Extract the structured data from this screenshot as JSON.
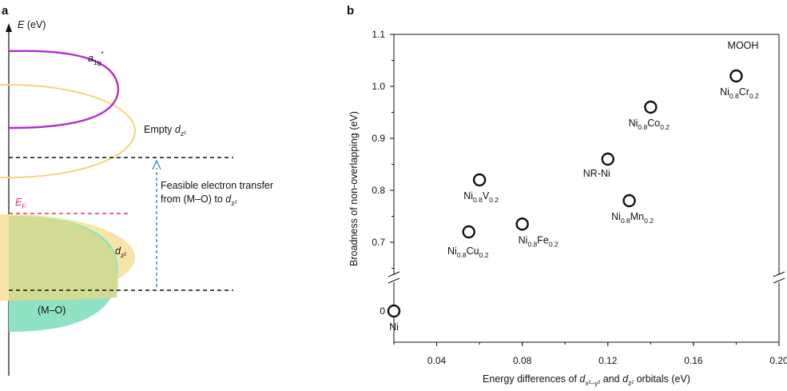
{
  "panel_a": {
    "letter": "a",
    "y_axis_label": "E",
    "y_axis_unit": "(eV)",
    "levels": {
      "a1g": {
        "base": "a",
        "sub": "1g",
        "sup": "*"
      },
      "empty_dz2": {
        "prefix": "Empty ",
        "base": "d",
        "sub": "z²"
      },
      "dz2": {
        "base": "d",
        "sub": "z²"
      },
      "fermi": {
        "base": "E",
        "sub": "F"
      },
      "m_o": "(M–O)"
    },
    "transfer": {
      "line1": "Feasible electron transfer",
      "line2_prefix": "from (M–O) to ",
      "base": "d",
      "sub": "z²"
    },
    "colors": {
      "a1g": "#b02fc9",
      "empty_dz2": "#f5d37e",
      "filled_dz2": "#f8e4a8",
      "m_o": "#8fe3c4",
      "overlap": "#d2db93",
      "fermi": "#e8335c",
      "transfer_arrow": "#3b8ed1"
    }
  },
  "chart_data": {
    "type": "scatter",
    "panel_letter": "b",
    "annotation": "MOOH",
    "xlabel": {
      "prefix": "Energy differences of ",
      "d1": "d",
      "sub1": "x²–y²",
      "mid": " and ",
      "d2": "d",
      "sub2": "z²",
      "suffix": " orbitals (eV)"
    },
    "ylabel": "Broadness of non-overlapping (eV)",
    "xlim": [
      0.02,
      0.2
    ],
    "xticks": [
      "0.04",
      "0.08",
      "0.12",
      "0.16",
      "0.20"
    ],
    "ylim_upper": [
      0.55,
      1.1
    ],
    "yticks_upper": [
      "0.7",
      "0.8",
      "0.9",
      "1.0",
      "1.1"
    ],
    "ytick_lower": "0",
    "broken_y_axis": true,
    "grid": false,
    "points": [
      {
        "x": 0.02,
        "y": 0,
        "label": {
          "parts": [
            "Ni"
          ],
          "subs": []
        }
      },
      {
        "x": 0.055,
        "y": 0.72,
        "label": {
          "parts": [
            "Ni",
            "Cu"
          ],
          "subs": [
            "0.8",
            "0.2"
          ]
        }
      },
      {
        "x": 0.06,
        "y": 0.82,
        "label": {
          "parts": [
            "Ni",
            "V"
          ],
          "subs": [
            "0.8",
            "0.2"
          ]
        }
      },
      {
        "x": 0.08,
        "y": 0.735,
        "label": {
          "parts": [
            "Ni",
            "Fe"
          ],
          "subs": [
            "0.8",
            "0.2"
          ]
        }
      },
      {
        "x": 0.12,
        "y": 0.86,
        "label": {
          "parts": [
            "NR-Ni"
          ],
          "subs": []
        }
      },
      {
        "x": 0.13,
        "y": 0.78,
        "label": {
          "parts": [
            "Ni",
            "Mn"
          ],
          "subs": [
            "0.8",
            "0.2"
          ]
        }
      },
      {
        "x": 0.14,
        "y": 0.96,
        "label": {
          "parts": [
            "Ni",
            "Co"
          ],
          "subs": [
            "0.8",
            "0.2"
          ]
        }
      },
      {
        "x": 0.18,
        "y": 1.02,
        "label": {
          "parts": [
            "Ni",
            "Cr"
          ],
          "subs": [
            "0.8",
            "0.2"
          ]
        }
      }
    ]
  }
}
